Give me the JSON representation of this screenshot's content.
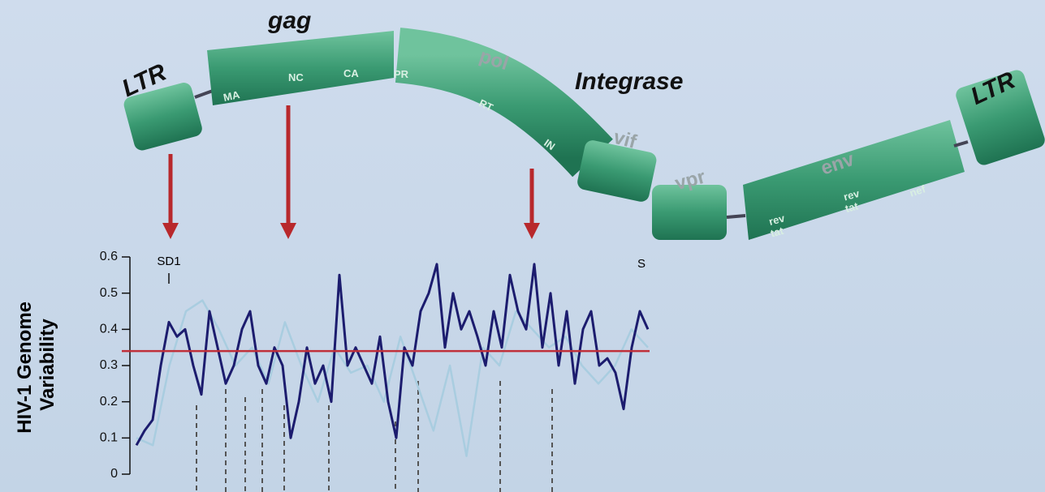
{
  "genome": {
    "ltr_left": "LTR",
    "gag": "gag",
    "ma": "MA",
    "nc": "NC",
    "ca": "CA",
    "pol": "pol",
    "pr": "PR",
    "rt": "RT",
    "in": "IN",
    "integrase": "Integrase",
    "vif": "vif",
    "vpr": "vpr",
    "env": "env",
    "rev_1": "rev",
    "tat_1": "tat",
    "rev_2": "rev",
    "tat_2": "tat",
    "nef": "nef",
    "ltr_right": "LTR"
  },
  "chart_data": {
    "type": "line",
    "y_label_lines": [
      "HIV-1 Genome",
      "Variability"
    ],
    "ylim": [
      0,
      0.6
    ],
    "yticks": [
      0,
      0.1,
      0.2,
      0.3,
      0.4,
      0.5,
      0.6
    ],
    "reference_line": 0.34,
    "reference_color": "#c0303a",
    "annotations": [
      "SD1",
      "S"
    ],
    "series": [
      {
        "color": "#a9cde0",
        "values": [
          0.1,
          0.08,
          0.3,
          0.45,
          0.48,
          0.4,
          0.3,
          0.35,
          0.25,
          0.42,
          0.3,
          0.2,
          0.35,
          0.28,
          0.3,
          0.2,
          0.38,
          0.25,
          0.12,
          0.3,
          0.05,
          0.35,
          0.3,
          0.45,
          0.4,
          0.35,
          0.38,
          0.3,
          0.25,
          0.3,
          0.4,
          0.35
        ]
      },
      {
        "color": "#1c1c6e",
        "values": [
          0.08,
          0.12,
          0.15,
          0.3,
          0.42,
          0.38,
          0.4,
          0.3,
          0.22,
          0.45,
          0.35,
          0.25,
          0.3,
          0.4,
          0.45,
          0.3,
          0.25,
          0.35,
          0.3,
          0.1,
          0.2,
          0.35,
          0.25,
          0.3,
          0.2,
          0.55,
          0.3,
          0.35,
          0.3,
          0.25,
          0.38,
          0.2,
          0.1,
          0.35,
          0.3,
          0.45,
          0.5,
          0.58,
          0.35,
          0.5,
          0.4,
          0.45,
          0.38,
          0.3,
          0.45,
          0.35,
          0.55,
          0.45,
          0.4,
          0.58,
          0.35,
          0.5,
          0.3,
          0.45,
          0.25,
          0.4,
          0.45,
          0.3,
          0.32,
          0.28,
          0.18,
          0.35,
          0.45,
          0.4
        ]
      }
    ]
  }
}
